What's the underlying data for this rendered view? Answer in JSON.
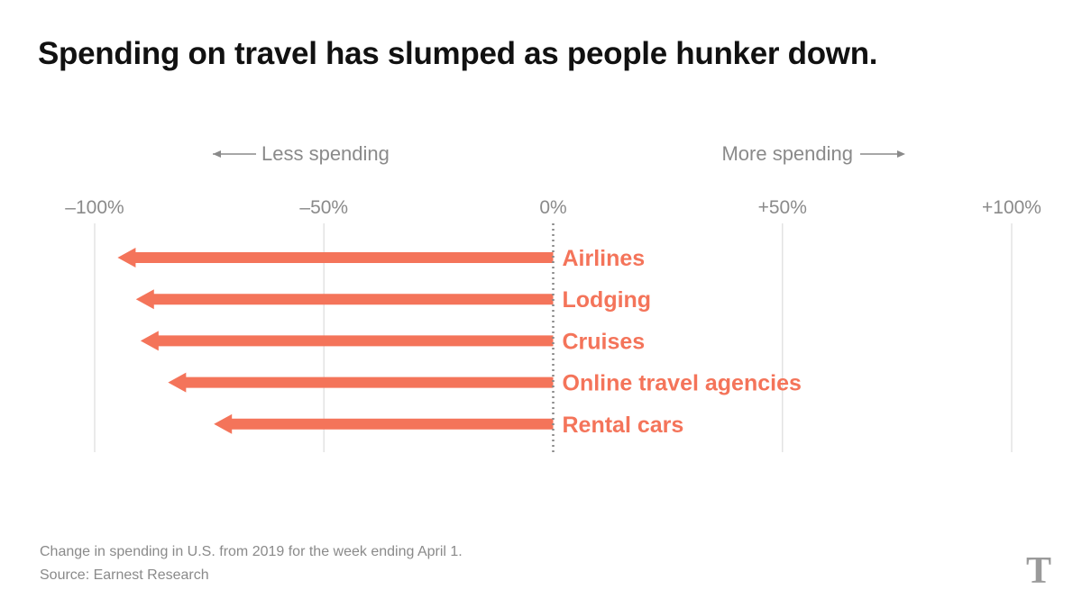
{
  "title": "Spending on travel has slumped as people hunker down.",
  "caption": "Change in spending in U.S. from 2019 for the week ending April 1.",
  "source": "Source: Earnest Research",
  "logo_text": "T",
  "chart_data": {
    "type": "bar",
    "orientation": "horizontal",
    "categories": [
      "Airlines",
      "Lodging",
      "Cruises",
      "Online travel agencies",
      "Rental cars"
    ],
    "values": [
      -95,
      -91,
      -90,
      -84,
      -74
    ],
    "unit": "%",
    "xlim": [
      -100,
      100
    ],
    "xticks": [
      -100,
      -50,
      0,
      50,
      100
    ],
    "xtick_labels": [
      "–100%",
      "–50%",
      "0%",
      "+50%",
      "+100%"
    ],
    "direction_labels": {
      "left": "Less spending",
      "right": "More spending"
    },
    "grid": true,
    "colors": {
      "bar": "#f4745a",
      "grid": "#e3e3e3",
      "zero_line": "#8a8a8a",
      "axis_text": "#8a8a8a"
    }
  }
}
